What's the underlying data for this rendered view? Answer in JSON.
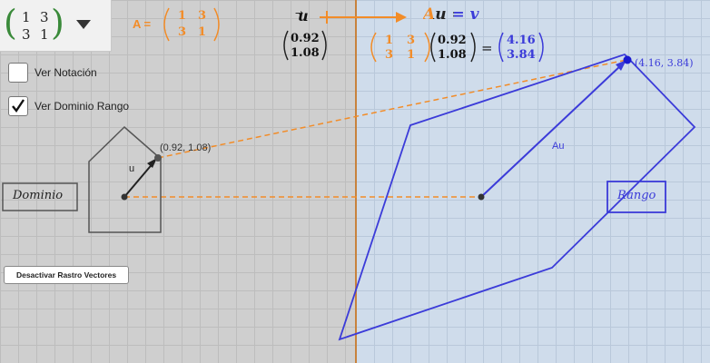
{
  "matrix_selector": {
    "cells": [
      "1",
      "3",
      "3",
      "1"
    ]
  },
  "a_label": {
    "prefix": "A =",
    "cells": [
      "1",
      "3",
      "3",
      "1"
    ]
  },
  "u_vector": {
    "symbol": "u",
    "values": [
      "0.92",
      "1.08"
    ]
  },
  "equation": {
    "text": "Au = v",
    "matrix_cells": [
      "1",
      "3",
      "3",
      "1"
    ],
    "u_values": [
      "0.92",
      "1.08"
    ],
    "equals": "=",
    "v_values": [
      "4.16",
      "3.84"
    ]
  },
  "controls": {
    "ver_notacion": "Ver Notación",
    "ver_dominio_rango": "Ver Dominio Rango",
    "ver_notacion_checked": false,
    "ver_dominio_rango_checked": true,
    "desactivar_button": "Desactivar Rastro Vectores"
  },
  "graph": {
    "dominio_label": "Dominio",
    "rango_label": "Rango",
    "u_label": "u",
    "au_label": "Au",
    "u_point_label": "(0.92, 1.08)",
    "v_point_label": "(4.16, 3.84)"
  },
  "colors": {
    "orange": "#f28c28",
    "green_paren": "#3a8a3a",
    "blue": "#3b3bd9"
  }
}
